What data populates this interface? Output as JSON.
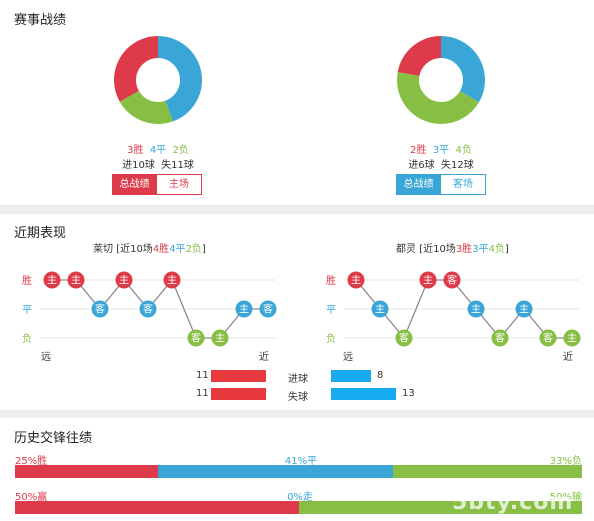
{
  "season": {
    "title": "赛事战绩",
    "left": {
      "win": "3胜",
      "draw": "4平",
      "loss": "2负",
      "goals": "进10球  失11球",
      "btn_total": "总战绩",
      "btn_venue": "主场",
      "donut": {
        "win": 3,
        "draw": 4,
        "loss": 2
      }
    },
    "right": {
      "win": "2胜",
      "draw": "3平",
      "loss": "4负",
      "goals": "进6球  失12球",
      "btn_total": "总战绩",
      "btn_venue": "客场",
      "donut": {
        "win": 2,
        "draw": 3,
        "loss": 4
      }
    }
  },
  "recent": {
    "title": "近期表现",
    "left_header": {
      "prefix": "莱切 [近10场",
      "win": "4胜",
      "draw": "4平",
      "loss": "2负",
      "suffix": "]"
    },
    "right_header": {
      "prefix": "都灵 [近10场",
      "win": "3胜",
      "draw": "3平",
      "loss": "4负",
      "suffix": "]"
    },
    "row_labels": {
      "win": "胜",
      "draw": "平",
      "loss": "负"
    },
    "axis": {
      "far": "远",
      "near": "近"
    },
    "left_nodes": [
      {
        "r": "win",
        "t": "主"
      },
      {
        "r": "win",
        "t": "主"
      },
      {
        "r": "draw",
        "t": "客"
      },
      {
        "r": "win",
        "t": "主"
      },
      {
        "r": "draw",
        "t": "客"
      },
      {
        "r": "win",
        "t": "主"
      },
      {
        "r": "loss",
        "t": "客"
      },
      {
        "r": "loss",
        "t": "主"
      },
      {
        "r": "draw",
        "t": "主"
      },
      {
        "r": "draw",
        "t": "客"
      }
    ],
    "right_nodes": [
      {
        "r": "win",
        "t": "主"
      },
      {
        "r": "draw",
        "t": "主"
      },
      {
        "r": "loss",
        "t": "客"
      },
      {
        "r": "win",
        "t": "主"
      },
      {
        "r": "win",
        "t": "客"
      },
      {
        "r": "draw",
        "t": "主"
      },
      {
        "r": "loss",
        "t": "客"
      },
      {
        "r": "draw",
        "t": "主"
      },
      {
        "r": "loss",
        "t": "客"
      },
      {
        "r": "loss",
        "t": "主"
      }
    ],
    "goals_for": {
      "label": "进球",
      "left": "11",
      "right": "8",
      "left_val": 11,
      "right_val": 8
    },
    "goals_against": {
      "label": "失球",
      "left": "11",
      "right": "13",
      "left_val": 11,
      "right_val": 13
    }
  },
  "history": {
    "title": "历史交锋往绩",
    "row1": {
      "left": "25%胜",
      "mid": "41%平",
      "right": "33%负",
      "values": [
        25,
        41,
        33
      ]
    },
    "row2": {
      "left": "50%赢",
      "mid": "0%走",
      "right": "50%输",
      "values": [
        50,
        0,
        50
      ]
    }
  },
  "watermark": "5bty.com",
  "colors": {
    "win": "#dd3b49",
    "draw": "#3aa6d8",
    "loss": "#87bf45",
    "bar_red": "#e8393f",
    "bar_blue": "#18aaf0"
  }
}
